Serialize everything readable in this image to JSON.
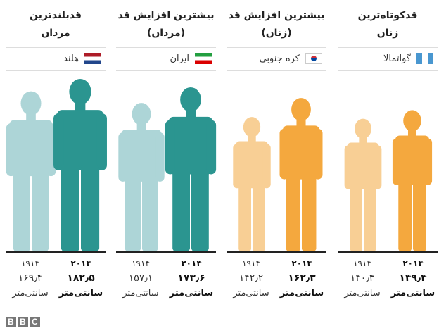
{
  "chart_data": {
    "type": "pictogram-bar",
    "unit": "سانتی‌متر",
    "years": [
      "۱۹۱۴",
      "۲۰۱۴"
    ],
    "panels": [
      {
        "title_line1": "قدبلندترین",
        "title_line2": "مردان",
        "country": "هلند",
        "flag": "netherlands",
        "sex": "male",
        "values": [
          169.4,
          182.5
        ],
        "labels": [
          "۱۶۹٫۴",
          "۱۸۲٫۵"
        ]
      },
      {
        "title_line1": "بیشترین افزایش قد",
        "title_line2": "(مردان)",
        "country": "ایران",
        "flag": "iran",
        "sex": "male",
        "values": [
          157.1,
          173.6
        ],
        "labels": [
          "۱۵۷٫۱",
          "۱۷۳٫۶"
        ]
      },
      {
        "title_line1": "بیشترین افزایش قد",
        "title_line2": "(زنان)",
        "country": "کره جنوبی",
        "flag": "south-korea",
        "sex": "female",
        "values": [
          142.2,
          162.3
        ],
        "labels": [
          "۱۴۲٫۲",
          "۱۶۲٫۳"
        ]
      },
      {
        "title_line1": "قدکوتاه‌ترین",
        "title_line2": "زنان",
        "country": "گواتمالا",
        "flag": "guatemala",
        "sex": "female",
        "values": [
          140.3,
          149.4
        ],
        "labels": [
          "۱۴۰٫۳",
          "۱۴۹٫۴"
        ]
      }
    ],
    "colors": {
      "male_1914": "#add5d7",
      "male_2014": "#2b9590",
      "female_1914": "#f8cf95",
      "female_2014": "#f4a83e"
    }
  },
  "footer": {
    "logo": "BBC"
  }
}
